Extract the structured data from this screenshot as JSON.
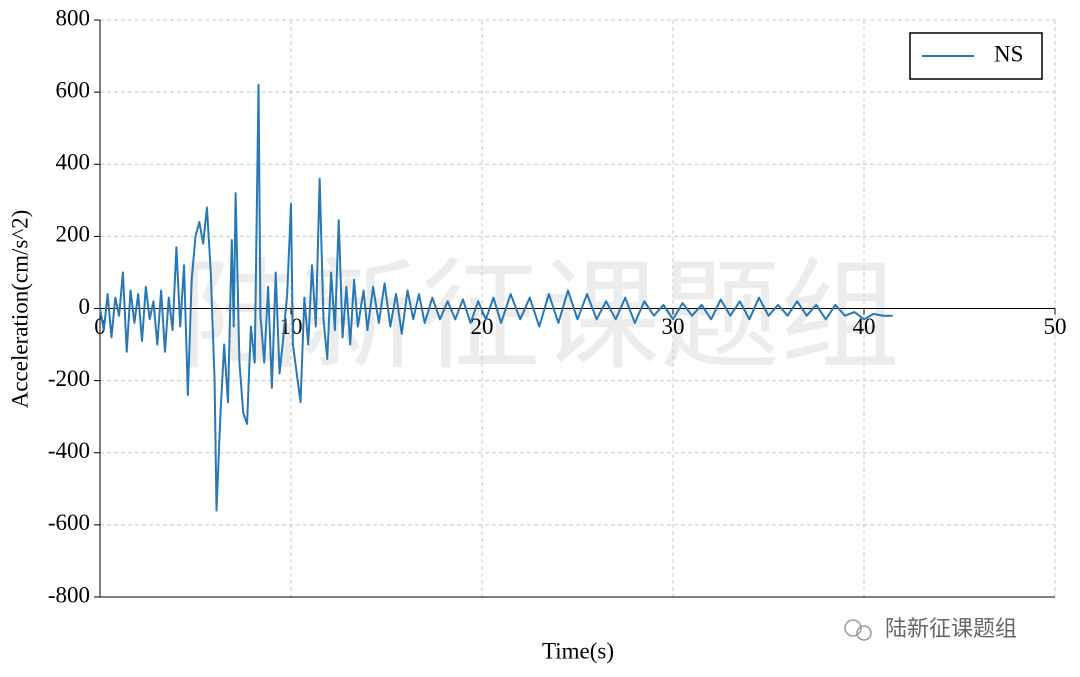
{
  "chart_data": {
    "type": "line",
    "xlabel": "Time(s)",
    "ylabel": "Acceleration(cm/s^2)",
    "xlim": [
      0,
      50
    ],
    "xticks": [
      0,
      10,
      20,
      30,
      40,
      50
    ],
    "ylim": [
      -800,
      800
    ],
    "yticks": [
      -800,
      -600,
      -400,
      -200,
      0,
      200,
      400,
      600,
      800
    ],
    "grid": true,
    "legend": "upper right",
    "x": [
      0,
      0.2,
      0.4,
      0.6,
      0.8,
      1.0,
      1.2,
      1.4,
      1.6,
      1.8,
      2.0,
      2.2,
      2.4,
      2.6,
      2.8,
      3.0,
      3.2,
      3.4,
      3.6,
      3.8,
      4.0,
      4.2,
      4.4,
      4.6,
      4.8,
      5.0,
      5.2,
      5.4,
      5.6,
      5.8,
      6.0,
      6.1,
      6.3,
      6.5,
      6.7,
      6.9,
      7.0,
      7.1,
      7.3,
      7.5,
      7.7,
      7.9,
      8.1,
      8.3,
      8.4,
      8.6,
      8.8,
      9.0,
      9.2,
      9.4,
      9.6,
      9.8,
      10.0,
      10.1,
      10.3,
      10.5,
      10.7,
      10.9,
      11.1,
      11.3,
      11.5,
      11.7,
      11.9,
      12.1,
      12.3,
      12.5,
      12.7,
      12.9,
      13.1,
      13.3,
      13.5,
      13.8,
      14.0,
      14.3,
      14.6,
      14.9,
      15.2,
      15.5,
      15.8,
      16.1,
      16.4,
      16.7,
      17.0,
      17.4,
      17.8,
      18.2,
      18.6,
      19.0,
      19.4,
      19.8,
      20.2,
      20.6,
      21.0,
      21.5,
      22.0,
      22.5,
      23.0,
      23.5,
      24.0,
      24.5,
      25.0,
      25.5,
      26.0,
      26.5,
      27.0,
      27.5,
      28.0,
      28.5,
      29.0,
      29.5,
      30.0,
      30.5,
      31.0,
      31.5,
      32.0,
      32.5,
      33.0,
      33.5,
      34.0,
      34.5,
      35.0,
      35.5,
      36.0,
      36.5,
      37.0,
      37.5,
      38.0,
      38.5,
      39.0,
      39.5,
      40.0,
      40.5,
      41.0,
      41.5
    ],
    "series": [
      {
        "name": "NS",
        "color": "#2878b5",
        "values": [
          0,
          -60,
          40,
          -80,
          30,
          -20,
          100,
          -120,
          50,
          -40,
          40,
          -90,
          60,
          -30,
          20,
          -100,
          50,
          -120,
          30,
          -60,
          170,
          -50,
          120,
          -240,
          80,
          200,
          240,
          180,
          280,
          100,
          -200,
          -560,
          -300,
          -100,
          -260,
          190,
          -50,
          320,
          -150,
          -290,
          -320,
          -50,
          -150,
          620,
          -20,
          -150,
          60,
          -220,
          100,
          -180,
          -80,
          40,
          290,
          -100,
          -180,
          -260,
          30,
          -100,
          120,
          -50,
          360,
          -30,
          -140,
          100,
          -60,
          245,
          -80,
          60,
          -100,
          80,
          -50,
          50,
          -60,
          60,
          -40,
          70,
          -50,
          40,
          -70,
          50,
          -30,
          40,
          -40,
          30,
          -30,
          20,
          -30,
          25,
          -40,
          20,
          -30,
          30,
          -40,
          40,
          -30,
          30,
          -50,
          40,
          -40,
          50,
          -30,
          40,
          -30,
          20,
          -30,
          30,
          -40,
          20,
          -20,
          10,
          -30,
          15,
          -20,
          10,
          -30,
          25,
          -20,
          20,
          -30,
          30,
          -20,
          10,
          -20,
          20,
          -20,
          10,
          -30,
          10,
          -20,
          -10,
          -30,
          -15,
          -20,
          -20
        ]
      }
    ],
    "watermark": "陆新征课题组",
    "source": "陆新征课题组"
  }
}
